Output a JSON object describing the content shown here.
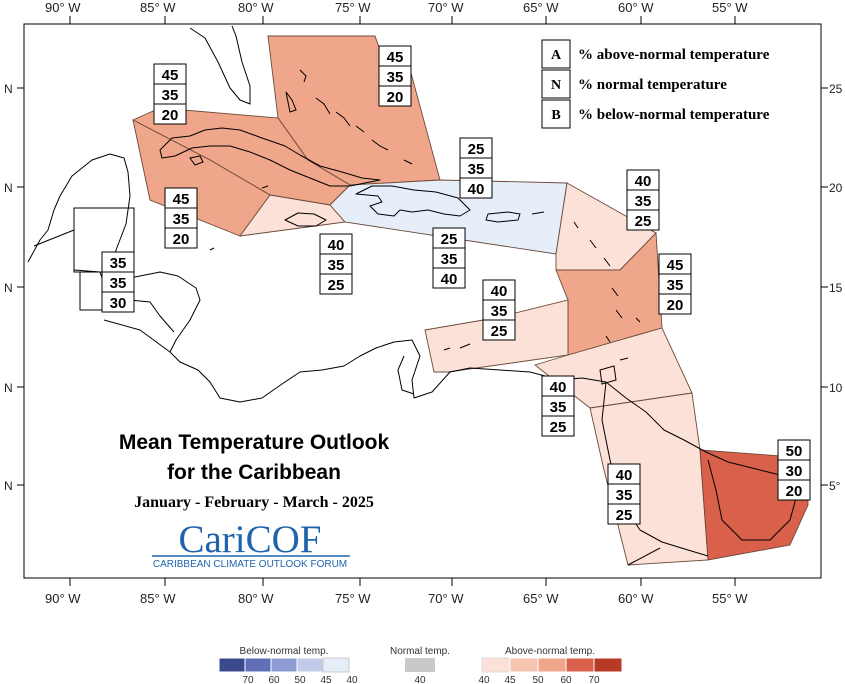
{
  "map": {
    "lon_labels": [
      "90° W",
      "85° W",
      "80° W",
      "75° W",
      "70° W",
      "65° W",
      "60° W",
      "55° W"
    ],
    "lat_labels_left": [
      "N",
      "N",
      "N",
      "N",
      "N"
    ],
    "lat_labels_right": [
      "25",
      "20",
      "15",
      "10",
      "5°"
    ]
  },
  "title": {
    "line1": "Mean Temperature Outlook",
    "line2": "for the Caribbean",
    "dates": "January - February - March - 2025"
  },
  "logo": {
    "name": "CariCOF",
    "subtitle": "CARIBBEAN CLIMATE OUTLOOK FORUM"
  },
  "legend": {
    "items": [
      {
        "letter": "A",
        "text": "% above-normal temperature"
      },
      {
        "letter": "N",
        "text": "% normal temperature"
      },
      {
        "letter": "B",
        "text": "% below-normal temperature"
      }
    ]
  },
  "zones": [
    {
      "id": "bahamas",
      "values": [
        "45",
        "35",
        "20"
      ],
      "color": "#f0a68a"
    },
    {
      "id": "cuba",
      "values": [
        "45",
        "35",
        "20"
      ],
      "color": "#f0a68a"
    },
    {
      "id": "western-cuba",
      "values": [
        "45",
        "35",
        "20"
      ],
      "color": "#f0a68a"
    },
    {
      "id": "jamaica",
      "values": [
        "40",
        "35",
        "25"
      ],
      "color": "#fbe1d8"
    },
    {
      "id": "belize",
      "values": [
        "35",
        "35",
        "30"
      ],
      "color": "none"
    },
    {
      "id": "hispaniola-north",
      "values": [
        "25",
        "35",
        "40"
      ],
      "color": "#e6eef9"
    },
    {
      "id": "hispaniola-south",
      "values": [
        "25",
        "35",
        "40"
      ],
      "color": "#e6eef9"
    },
    {
      "id": "leeward-islands",
      "values": [
        "40",
        "35",
        "25"
      ],
      "color": "#fbe1d8"
    },
    {
      "id": "windward-islands",
      "values": [
        "45",
        "35",
        "20"
      ],
      "color": "#f0a68a"
    },
    {
      "id": "abc-islands",
      "values": [
        "40",
        "35",
        "25"
      ],
      "color": "#fbe1d8"
    },
    {
      "id": "trinidad",
      "values": [
        "40",
        "35",
        "25"
      ],
      "color": "#fbe1d8"
    },
    {
      "id": "guyana",
      "values": [
        "40",
        "35",
        "25"
      ],
      "color": "#fbe1d8"
    },
    {
      "id": "french-guiana",
      "values": [
        "50",
        "30",
        "20"
      ],
      "color": "#d9604a"
    }
  ],
  "colorbar": {
    "below_label": "Below-normal temp.",
    "normal_label": "Normal temp.",
    "above_label": "Above-normal temp.",
    "below_ticks": [
      "70",
      "60",
      "50",
      "45",
      "40"
    ],
    "normal_ticks": [
      "40"
    ],
    "above_ticks": [
      "40",
      "45",
      "50",
      "60",
      "70"
    ],
    "below_colors": [
      "#3b4a8e",
      "#5e6fb8",
      "#8e9bd3",
      "#c3cbea",
      "#e6eef9"
    ],
    "normal_colors": [
      "#c9c9c9"
    ],
    "above_colors": [
      "#fbe1d8",
      "#f6c4b1",
      "#f0a68a",
      "#d9604a",
      "#b63a26"
    ]
  }
}
